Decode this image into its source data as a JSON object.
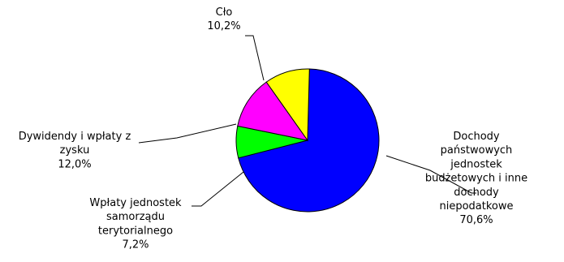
{
  "chart_data": {
    "type": "pie",
    "start_angle_deg": 1.5,
    "direction": "clockwise",
    "legend": "none",
    "slices": [
      {
        "label_lines": [
          "Dochody",
          "państwowych",
          "jednostek",
          "budżetowych i inne",
          "dochody",
          "niepodatkowe"
        ],
        "value_label": "70,6%",
        "value": 70.6,
        "color": "#0000FF"
      },
      {
        "label_lines": [
          "Wpłaty jednostek",
          "samorządu",
          "terytorialnego"
        ],
        "value_label": "7,2%",
        "value": 7.2,
        "color": "#00FF00"
      },
      {
        "label_lines": [
          "Dywidendy i wpłaty z",
          "zysku"
        ],
        "value_label": "12,0%",
        "value": 12.0,
        "color": "#FF00FF"
      },
      {
        "label_lines": [
          "Cło"
        ],
        "value_label": "10,2%",
        "value": 10.2,
        "color": "#FFFF00"
      }
    ]
  }
}
